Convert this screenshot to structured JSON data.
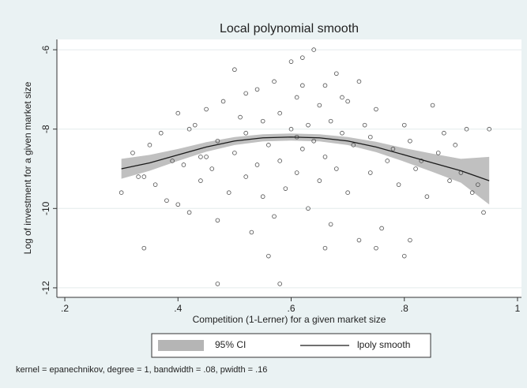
{
  "chart_data": {
    "type": "scatter",
    "title": "Local polynomial smooth",
    "xlabel": "Competition (1-Lerner) for a given market size",
    "ylabel": "Log of investment for a given market size",
    "note": "kernel = epanechnikov, degree = 1, bandwidth = .08, pwidth = .16",
    "xlim": [
      0.186,
      1.007
    ],
    "ylim": [
      -12.24,
      -5.74
    ],
    "xticks": [
      {
        "value": 0.2,
        "label": ".2"
      },
      {
        "value": 0.4,
        "label": ".4"
      },
      {
        "value": 0.6,
        "label": ".6"
      },
      {
        "value": 0.8,
        "label": ".8"
      },
      1
    ],
    "yticks": [
      -12,
      -10,
      -8,
      -6
    ],
    "grid": true,
    "points": {
      "color": "#4d4d4d",
      "x": [
        0.3,
        0.32,
        0.33,
        0.34,
        0.35,
        0.36,
        0.37,
        0.38,
        0.39,
        0.4,
        0.4,
        0.41,
        0.42,
        0.42,
        0.43,
        0.44,
        0.45,
        0.45,
        0.46,
        0.47,
        0.47,
        0.48,
        0.49,
        0.5,
        0.5,
        0.51,
        0.52,
        0.52,
        0.53,
        0.54,
        0.54,
        0.55,
        0.55,
        0.56,
        0.57,
        0.57,
        0.58,
        0.58,
        0.59,
        0.6,
        0.6,
        0.61,
        0.61,
        0.62,
        0.62,
        0.63,
        0.63,
        0.64,
        0.64,
        0.65,
        0.65,
        0.66,
        0.66,
        0.67,
        0.67,
        0.68,
        0.68,
        0.69,
        0.7,
        0.7,
        0.71,
        0.72,
        0.72,
        0.73,
        0.74,
        0.74,
        0.75,
        0.76,
        0.77,
        0.78,
        0.79,
        0.8,
        0.8,
        0.81,
        0.82,
        0.83,
        0.84,
        0.85,
        0.86,
        0.87,
        0.88,
        0.89,
        0.9,
        0.91,
        0.92,
        0.93,
        0.94,
        0.95,
        0.62,
        0.66,
        0.56,
        0.69,
        0.47,
        0.61,
        0.81,
        0.34,
        0.44,
        0.75,
        0.52,
        0.58
      ],
      "y": [
        -9.6,
        -8.6,
        -9.2,
        -11.0,
        -8.4,
        -9.4,
        -8.1,
        -9.8,
        -8.8,
        -7.6,
        -9.9,
        -8.9,
        -10.1,
        -8.0,
        -7.9,
        -9.3,
        -7.5,
        -8.7,
        -9.0,
        -11.9,
        -8.3,
        -7.3,
        -9.6,
        -6.5,
        -8.6,
        -7.7,
        -9.2,
        -8.1,
        -10.6,
        -7.0,
        -8.9,
        -7.8,
        -9.7,
        -8.4,
        -6.8,
        -10.2,
        -7.6,
        -8.8,
        -9.5,
        -6.3,
        -8.0,
        -7.2,
        -9.1,
        -6.2,
        -8.5,
        -7.9,
        -10.0,
        -6.0,
        -8.3,
        -7.4,
        -9.3,
        -6.9,
        -8.7,
        -7.8,
        -10.4,
        -6.6,
        -9.0,
        -8.1,
        -7.3,
        -9.6,
        -8.4,
        -6.8,
        -10.8,
        -7.9,
        -9.1,
        -8.2,
        -7.5,
        -10.5,
        -8.8,
        -8.5,
        -9.4,
        -7.9,
        -11.2,
        -8.3,
        -9.0,
        -8.8,
        -9.7,
        -7.4,
        -8.6,
        -8.1,
        -9.3,
        -8.4,
        -9.1,
        -8.0,
        -9.6,
        -9.4,
        -10.1,
        -8.0,
        -6.9,
        -11.0,
        -11.2,
        -7.2,
        -10.3,
        -8.2,
        -10.8,
        -9.2,
        -8.7,
        -11.0,
        -7.1,
        -11.9
      ]
    },
    "band": {
      "name": "95% CI",
      "color": "#b5b5b5",
      "x": [
        0.3,
        0.35,
        0.4,
        0.45,
        0.5,
        0.55,
        0.6,
        0.65,
        0.7,
        0.75,
        0.8,
        0.85,
        0.9,
        0.95
      ],
      "lower": [
        -9.25,
        -9.05,
        -8.8,
        -8.57,
        -8.4,
        -8.31,
        -8.29,
        -8.31,
        -8.4,
        -8.58,
        -8.82,
        -9.08,
        -9.35,
        -9.9
      ],
      "upper": [
        -8.75,
        -8.65,
        -8.5,
        -8.33,
        -8.2,
        -8.13,
        -8.11,
        -8.13,
        -8.2,
        -8.32,
        -8.48,
        -8.62,
        -8.75,
        -8.7
      ]
    },
    "smooth": {
      "name": "lpoly smooth",
      "color": "#1a1a1a",
      "x": [
        0.3,
        0.35,
        0.4,
        0.45,
        0.5,
        0.55,
        0.6,
        0.65,
        0.7,
        0.75,
        0.8,
        0.85,
        0.9,
        0.95
      ],
      "values": [
        -9.0,
        -8.85,
        -8.65,
        -8.45,
        -8.3,
        -8.22,
        -8.2,
        -8.22,
        -8.3,
        -8.45,
        -8.65,
        -8.85,
        -9.05,
        -9.3
      ]
    }
  }
}
